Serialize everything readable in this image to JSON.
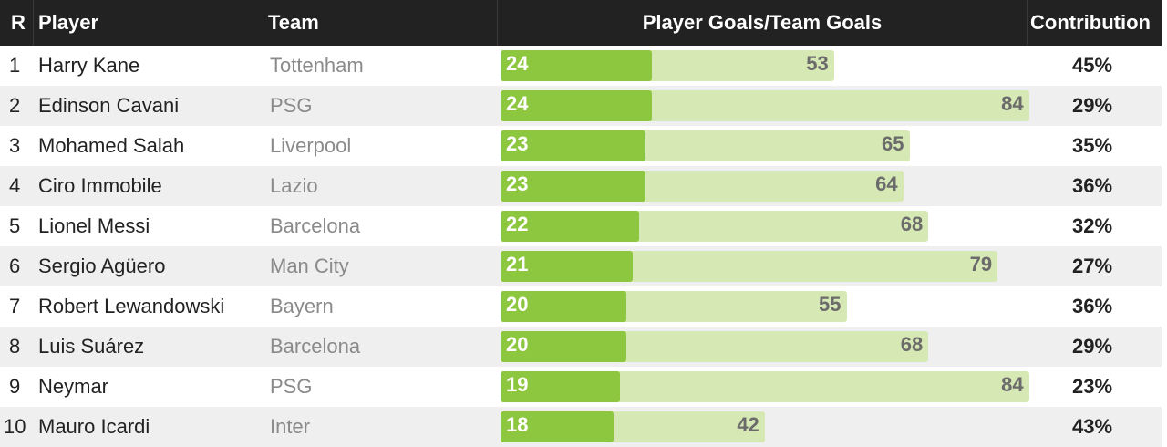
{
  "chart_data": {
    "type": "bar",
    "columns": {
      "rank": "R",
      "player": "Player",
      "team": "Team",
      "goals": "Player Goals/Team Goals",
      "contribution": "Contribution"
    },
    "series": [
      {
        "name": "Player Goals",
        "color": "#8dc63f"
      },
      {
        "name": "Team Goals",
        "color": "#d6e8b4"
      }
    ],
    "rows": [
      {
        "rank": "1",
        "player": "Harry Kane",
        "team": "Tottenham",
        "player_goals": 24,
        "team_goals": 53,
        "contribution": "45%"
      },
      {
        "rank": "2",
        "player": "Edinson Cavani",
        "team": "PSG",
        "player_goals": 24,
        "team_goals": 84,
        "contribution": "29%"
      },
      {
        "rank": "3",
        "player": "Mohamed Salah",
        "team": "Liverpool",
        "player_goals": 23,
        "team_goals": 65,
        "contribution": "35%"
      },
      {
        "rank": "4",
        "player": "Ciro Immobile",
        "team": "Lazio",
        "player_goals": 23,
        "team_goals": 64,
        "contribution": "36%"
      },
      {
        "rank": "5",
        "player": "Lionel Messi",
        "team": "Barcelona",
        "player_goals": 22,
        "team_goals": 68,
        "contribution": "32%"
      },
      {
        "rank": "6",
        "player": "Sergio Agüero",
        "team": "Man City",
        "player_goals": 21,
        "team_goals": 79,
        "contribution": "27%"
      },
      {
        "rank": "7",
        "player": "Robert Lewandowski",
        "team": "Bayern",
        "player_goals": 20,
        "team_goals": 55,
        "contribution": "36%"
      },
      {
        "rank": "8",
        "player": "Luis Suárez",
        "team": "Barcelona",
        "player_goals": 20,
        "team_goals": 68,
        "contribution": "29%"
      },
      {
        "rank": "9",
        "player": "Neymar",
        "team": "PSG",
        "player_goals": 19,
        "team_goals": 84,
        "contribution": "23%"
      },
      {
        "rank": "10",
        "player": "Mauro Icardi",
        "team": "Inter",
        "player_goals": 18,
        "team_goals": 42,
        "contribution": "43%"
      }
    ],
    "xlim": [
      0,
      84
    ]
  }
}
